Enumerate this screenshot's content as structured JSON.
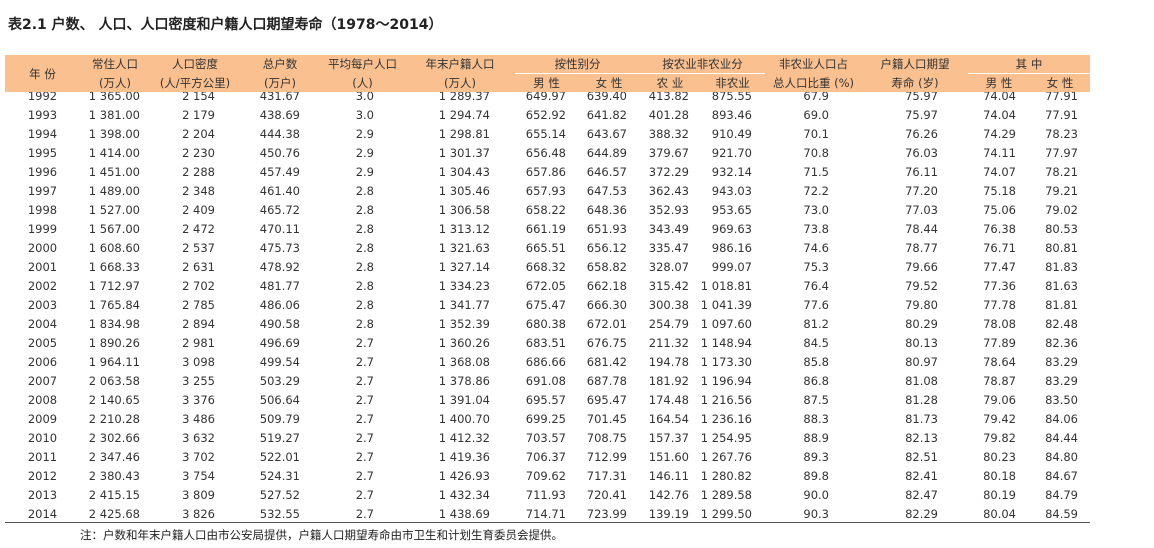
{
  "title": "表2.1 户数、 人口、人口密度和户籍人口期望寿命（1978～2014）",
  "table": {
    "header_top": [
      "年 份",
      "常住人口",
      "人口密度",
      "总户数",
      "平均每户人口",
      "年末户籍人口",
      "按性别分",
      "按农业非农业分",
      "非农业人口占",
      "户籍人口期望",
      "其 中"
    ],
    "header_bottom": [
      "(万人)",
      "(人/平方公里)",
      "(万户)",
      "(人)",
      "(万人)",
      "男 性",
      "女 性",
      "农 业",
      "非农业",
      "总人口比重 (%)",
      "寿命 (岁)",
      "男 性",
      "女 性"
    ],
    "rows": [
      [
        "1992",
        "1 365.00",
        "2 154",
        "431.67",
        "3.0",
        "1 289.37",
        "649.97",
        "639.40",
        "413.82",
        "875.55",
        "67.9",
        "75.97",
        "74.04",
        "77.91"
      ],
      [
        "1993",
        "1 381.00",
        "2 179",
        "438.69",
        "3.0",
        "1 294.74",
        "652.92",
        "641.82",
        "401.28",
        "893.46",
        "69.0",
        "75.97",
        "74.04",
        "77.91"
      ],
      [
        "1994",
        "1 398.00",
        "2 204",
        "444.38",
        "2.9",
        "1 298.81",
        "655.14",
        "643.67",
        "388.32",
        "910.49",
        "70.1",
        "76.26",
        "74.29",
        "78.23"
      ],
      [
        "1995",
        "1 414.00",
        "2 230",
        "450.76",
        "2.9",
        "1 301.37",
        "656.48",
        "644.89",
        "379.67",
        "921.70",
        "70.8",
        "76.03",
        "74.11",
        "77.97"
      ],
      [
        "1996",
        "1 451.00",
        "2 288",
        "457.49",
        "2.9",
        "1 304.43",
        "657.86",
        "646.57",
        "372.29",
        "932.14",
        "71.5",
        "76.11",
        "74.07",
        "78.21"
      ],
      [
        "1997",
        "1 489.00",
        "2 348",
        "461.40",
        "2.8",
        "1 305.46",
        "657.93",
        "647.53",
        "362.43",
        "943.03",
        "72.2",
        "77.20",
        "75.18",
        "79.21"
      ],
      [
        "1998",
        "1 527.00",
        "2 409",
        "465.72",
        "2.8",
        "1 306.58",
        "658.22",
        "648.36",
        "352.93",
        "953.65",
        "73.0",
        "77.03",
        "75.06",
        "79.02"
      ],
      [
        "1999",
        "1 567.00",
        "2 472",
        "470.11",
        "2.8",
        "1 313.12",
        "661.19",
        "651.93",
        "343.49",
        "969.63",
        "73.8",
        "78.44",
        "76.38",
        "80.53"
      ],
      [
        "2000",
        "1 608.60",
        "2 537",
        "475.73",
        "2.8",
        "1 321.63",
        "665.51",
        "656.12",
        "335.47",
        "986.16",
        "74.6",
        "78.77",
        "76.71",
        "80.81"
      ],
      [
        "2001",
        "1 668.33",
        "2 631",
        "478.92",
        "2.8",
        "1 327.14",
        "668.32",
        "658.82",
        "328.07",
        "999.07",
        "75.3",
        "79.66",
        "77.47",
        "81.83"
      ],
      [
        "2002",
        "1 712.97",
        "2 702",
        "481.77",
        "2.8",
        "1 334.23",
        "672.05",
        "662.18",
        "315.42",
        "1 018.81",
        "76.4",
        "79.52",
        "77.36",
        "81.63"
      ],
      [
        "2003",
        "1 765.84",
        "2 785",
        "486.06",
        "2.8",
        "1 341.77",
        "675.47",
        "666.30",
        "300.38",
        "1 041.39",
        "77.6",
        "79.80",
        "77.78",
        "81.81"
      ],
      [
        "2004",
        "1 834.98",
        "2 894",
        "490.58",
        "2.8",
        "1 352.39",
        "680.38",
        "672.01",
        "254.79",
        "1 097.60",
        "81.2",
        "80.29",
        "78.08",
        "82.48"
      ],
      [
        "2005",
        "1 890.26",
        "2 981",
        "496.69",
        "2.7",
        "1 360.26",
        "683.51",
        "676.75",
        "211.32",
        "1 148.94",
        "84.5",
        "80.13",
        "77.89",
        "82.36"
      ],
      [
        "2006",
        "1 964.11",
        "3 098",
        "499.54",
        "2.7",
        "1 368.08",
        "686.66",
        "681.42",
        "194.78",
        "1 173.30",
        "85.8",
        "80.97",
        "78.64",
        "83.29"
      ],
      [
        "2007",
        "2 063.58",
        "3 255",
        "503.29",
        "2.7",
        "1 378.86",
        "691.08",
        "687.78",
        "181.92",
        "1 196.94",
        "86.8",
        "81.08",
        "78.87",
        "83.29"
      ],
      [
        "2008",
        "2 140.65",
        "3 376",
        "506.64",
        "2.7",
        "1 391.04",
        "695.57",
        "695.47",
        "174.48",
        "1 216.56",
        "87.5",
        "81.28",
        "79.06",
        "83.50"
      ],
      [
        "2009",
        "2 210.28",
        "3 486",
        "509.79",
        "2.7",
        "1 400.70",
        "699.25",
        "701.45",
        "164.54",
        "1 236.16",
        "88.3",
        "81.73",
        "79.42",
        "84.06"
      ],
      [
        "2010",
        "2 302.66",
        "3 632",
        "519.27",
        "2.7",
        "1 412.32",
        "703.57",
        "708.75",
        "157.37",
        "1 254.95",
        "88.9",
        "82.13",
        "79.82",
        "84.44"
      ],
      [
        "2011",
        "2 347.46",
        "3 702",
        "522.01",
        "2.7",
        "1 419.36",
        "706.37",
        "712.99",
        "151.60",
        "1 267.76",
        "89.3",
        "82.51",
        "80.23",
        "84.80"
      ],
      [
        "2012",
        "2 380.43",
        "3 754",
        "524.31",
        "2.7",
        "1 426.93",
        "709.62",
        "717.31",
        "146.11",
        "1 280.82",
        "89.8",
        "82.41",
        "80.18",
        "84.67"
      ],
      [
        "2013",
        "2 415.15",
        "3 809",
        "527.52",
        "2.7",
        "1 432.34",
        "711.93",
        "720.41",
        "142.76",
        "1 289.58",
        "90.0",
        "82.47",
        "80.19",
        "84.79"
      ],
      [
        "2014",
        "2 425.68",
        "3 826",
        "532.55",
        "2.7",
        "1 438.69",
        "714.71",
        "723.99",
        "139.19",
        "1 299.50",
        "90.3",
        "82.29",
        "80.04",
        "84.59"
      ]
    ]
  },
  "note": "注：户数和年末户籍人口由市公安局提供，户籍人口期望寿命由市卫生和计划生育委员会提供。"
}
